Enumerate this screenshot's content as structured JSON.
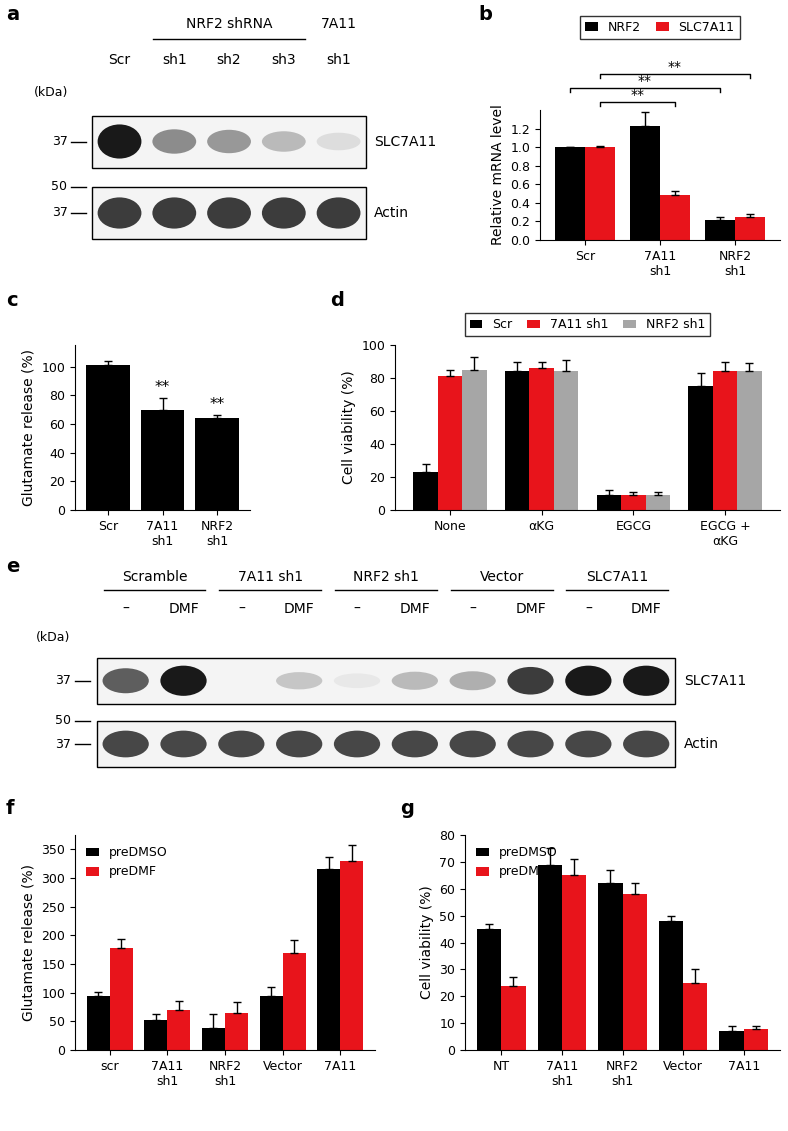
{
  "chart_data": [
    {
      "panel": "b",
      "type": "bar",
      "categories": [
        "Scr",
        "7A11 sh1",
        "NRF2 sh1"
      ],
      "series": [
        {
          "name": "NRF2",
          "color": "#000000",
          "values": [
            1.0,
            1.23,
            0.22
          ],
          "errors": [
            0.0,
            0.15,
            0.03
          ]
        },
        {
          "name": "SLC7A11",
          "color": "#e8141b",
          "values": [
            1.0,
            0.48,
            0.25
          ],
          "errors": [
            0.01,
            0.05,
            0.03
          ]
        }
      ],
      "ylabel": "Relative mRNA level",
      "ylim": [
        0,
        1.4
      ],
      "yticks": [
        {
          "value": 0,
          "label": "0.0"
        },
        {
          "value": 0.2,
          "label": "0.2"
        },
        {
          "value": 0.4,
          "label": "0.4"
        },
        {
          "value": 0.6,
          "label": "0.6"
        },
        {
          "value": 0.8,
          "label": "0.8"
        },
        {
          "value": 1.0,
          "label": "1.0"
        },
        {
          "value": 1.2,
          "label": "1.2"
        }
      ],
      "legend": "upper center",
      "annotations": [
        {
          "text": "**",
          "from": "Scr",
          "to": "7A11 sh1",
          "series": "SLC7A11"
        },
        {
          "text": "**",
          "from": "Scr",
          "to": "NRF2 sh1",
          "series": "NRF2"
        },
        {
          "text": "**",
          "from": "Scr",
          "to": "NRF2 sh1",
          "series": "SLC7A11"
        }
      ]
    },
    {
      "panel": "c",
      "type": "bar",
      "categories": [
        "Scr",
        "7A11 sh1",
        "NRF2 sh1"
      ],
      "values": [
        101,
        70,
        64
      ],
      "errors": [
        3,
        8,
        2
      ],
      "color": "#000000",
      "ylabel": "Glutamate release (%)",
      "ylim": [
        0,
        115
      ],
      "yticks": [
        0,
        20,
        40,
        60,
        80,
        100
      ],
      "annotations": [
        {
          "text": "**",
          "category": "7A11 sh1"
        },
        {
          "text": "**",
          "category": "NRF2 sh1"
        }
      ]
    },
    {
      "panel": "d",
      "type": "bar",
      "categories": [
        "None",
        "αKG",
        "EGCG",
        "EGCG + αKG"
      ],
      "series": [
        {
          "name": "Scr",
          "color": "#000000",
          "values": [
            23,
            84,
            9,
            75
          ],
          "errors": [
            5,
            6,
            3,
            8
          ]
        },
        {
          "name": "7A11 sh1",
          "color": "#e8141b",
          "values": [
            81,
            86,
            9,
            84
          ],
          "errors": [
            4,
            4,
            2,
            6
          ]
        },
        {
          "name": "NRF2 sh1",
          "color": "#a6a6a6",
          "values": [
            85,
            84,
            9,
            84
          ],
          "errors": [
            8,
            7,
            2,
            5
          ]
        }
      ],
      "ylabel": "Cell viability (%)",
      "ylim": [
        0,
        100
      ],
      "yticks": [
        0,
        20,
        40,
        60,
        80,
        100
      ],
      "legend": "upper center"
    },
    {
      "panel": "f",
      "type": "bar",
      "categories": [
        "scr",
        "7A11 sh1",
        "NRF2 sh1",
        "Vector",
        "7A11"
      ],
      "series": [
        {
          "name": "preDMSO",
          "color": "#000000",
          "values": [
            95,
            52,
            38,
            95,
            315
          ],
          "errors": [
            7,
            10,
            25,
            15,
            22
          ]
        },
        {
          "name": "preDMF",
          "color": "#e8141b",
          "values": [
            178,
            70,
            65,
            170,
            330
          ],
          "errors": [
            15,
            15,
            18,
            22,
            28
          ]
        }
      ],
      "ylabel": "Glutamate release (%)",
      "ylim": [
        0,
        375
      ],
      "yticks": [
        0,
        50,
        100,
        150,
        200,
        250,
        300,
        350
      ],
      "legend": "upper left"
    },
    {
      "panel": "g",
      "type": "bar",
      "categories": [
        "NT",
        "7A11 sh1",
        "NRF2 sh1",
        "Vector",
        "7A11"
      ],
      "series": [
        {
          "name": "preDMSO",
          "color": "#000000",
          "values": [
            45,
            69,
            62,
            48,
            7
          ],
          "errors": [
            2,
            6,
            5,
            2,
            2
          ]
        },
        {
          "name": "preDMF",
          "color": "#e8141b",
          "values": [
            24,
            65,
            58,
            25,
            8
          ],
          "errors": [
            3,
            6,
            4,
            5,
            1
          ]
        }
      ],
      "ylabel": "Cell viability (%)",
      "ylim": [
        0,
        80
      ],
      "yticks": [
        0,
        10,
        20,
        30,
        40,
        50,
        60,
        70,
        80
      ],
      "legend": "upper left"
    }
  ],
  "blots": [
    {
      "panel": "a",
      "kda_label": "(kDa)",
      "lanes": [
        "Scr",
        "sh1",
        "sh2",
        "sh3",
        "sh1"
      ],
      "groups": [
        {
          "label": "NRF2 shRNA",
          "lanes": [
            1,
            3
          ]
        },
        {
          "label": "7A11",
          "lanes": [
            4,
            4
          ]
        }
      ],
      "rows": [
        {
          "name": "SLC7A11",
          "markers": [
            37
          ],
          "intensity": [
            1.0,
            0.5,
            0.45,
            0.3,
            0.15
          ]
        },
        {
          "name": "Actin",
          "markers": [
            50,
            37
          ],
          "intensity": [
            0.85,
            0.85,
            0.85,
            0.85,
            0.85
          ]
        }
      ]
    },
    {
      "panel": "e",
      "kda_label": "(kDa)",
      "lanes": [
        "–",
        "DMF",
        "–",
        "DMF",
        "–",
        "DMF",
        "–",
        "DMF",
        "–",
        "DMF"
      ],
      "groups": [
        {
          "label": "Scramble",
          "lanes": [
            0,
            1
          ]
        },
        {
          "label": "7A11 sh1",
          "lanes": [
            2,
            3
          ]
        },
        {
          "label": "NRF2 sh1",
          "lanes": [
            4,
            5
          ]
        },
        {
          "label": "Vector",
          "lanes": [
            6,
            7
          ]
        },
        {
          "label": "SLC7A11",
          "lanes": [
            8,
            9
          ]
        }
      ],
      "rows": [
        {
          "name": "SLC7A11",
          "markers": [
            37
          ],
          "intensity": [
            0.7,
            1.0,
            0.0,
            0.25,
            0.1,
            0.3,
            0.35,
            0.85,
            1.0,
            1.0
          ]
        },
        {
          "name": "Actin",
          "markers": [
            50,
            37
          ],
          "intensity": [
            0.8,
            0.8,
            0.8,
            0.8,
            0.8,
            0.8,
            0.8,
            0.8,
            0.8,
            0.8
          ]
        }
      ]
    }
  ]
}
